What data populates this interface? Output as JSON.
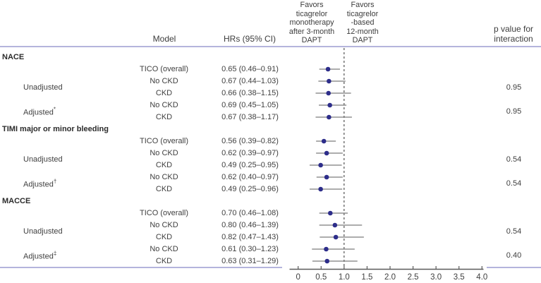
{
  "header": {
    "model": "Model",
    "hr": "HRs (95% CI)",
    "favors_left": [
      "Favors",
      "ticagrelor",
      "monotherapy",
      "after 3-month",
      "DAPT"
    ],
    "favors_right": [
      "Favors",
      "ticagrelor",
      "-based",
      "12-month",
      "DAPT"
    ],
    "p_col": [
      "p value for",
      "interaction"
    ]
  },
  "colors": {
    "marker": "#2d2d8a",
    "ci_line": "#7c7c7c",
    "border": "#b4b4dc",
    "axis": "#5a5a5a",
    "dashed": "#2e2e2e",
    "text": "#3f3f3f"
  },
  "chart_data": {
    "type": "forest",
    "x_axis": {
      "min": 0,
      "max": 4.0,
      "ticks": [
        0,
        0.5,
        1.0,
        1.5,
        2.0,
        2.5,
        3.0,
        3.5,
        4.0
      ],
      "tick_labels": [
        "0",
        "0.5",
        "1.0",
        "1.5",
        "2.0",
        "2.5",
        "3.0",
        "3.5",
        "4.0"
      ],
      "reference_line": 1.0,
      "scale": "linear"
    },
    "sections": [
      {
        "label": "NACE",
        "rows": [
          {
            "model": "TICO (overall)",
            "hr": 0.65,
            "lo": 0.46,
            "hi": 0.91,
            "hr_text": "0.65 (0.46–0.91)"
          },
          {
            "model": "No CKD",
            "hr": 0.67,
            "lo": 0.44,
            "hi": 1.03,
            "hr_text": "0.67 (0.44–1.03)"
          },
          {
            "model": "CKD",
            "hr": 0.66,
            "lo": 0.38,
            "hi": 1.15,
            "hr_text": "0.66 (0.38–1.15)"
          },
          {
            "model": "No CKD",
            "hr": 0.69,
            "lo": 0.45,
            "hi": 1.05,
            "hr_text": "0.69 (0.45–1.05)"
          },
          {
            "model": "CKD",
            "hr": 0.67,
            "lo": 0.38,
            "hi": 1.17,
            "hr_text": "0.67 (0.38–1.17)"
          }
        ],
        "groups": [
          {
            "label": "Unadjusted",
            "sup": "",
            "p": "0.95"
          },
          {
            "label": "Adjusted",
            "sup": "*",
            "p": "0.95"
          }
        ]
      },
      {
        "label": "TIMI major or minor bleeding",
        "rows": [
          {
            "model": "TICO (overall)",
            "hr": 0.56,
            "lo": 0.39,
            "hi": 0.82,
            "hr_text": "0.56 (0.39–0.82)"
          },
          {
            "model": "No CKD",
            "hr": 0.62,
            "lo": 0.39,
            "hi": 0.97,
            "hr_text": "0.62 (0.39–0.97)"
          },
          {
            "model": "CKD",
            "hr": 0.49,
            "lo": 0.25,
            "hi": 0.95,
            "hr_text": "0.49 (0.25–0.95)"
          },
          {
            "model": "No CKD",
            "hr": 0.62,
            "lo": 0.4,
            "hi": 0.97,
            "hr_text": "0.62 (0.40–0.97)"
          },
          {
            "model": "CKD",
            "hr": 0.49,
            "lo": 0.25,
            "hi": 0.96,
            "hr_text": "0.49 (0.25–0.96)"
          }
        ],
        "groups": [
          {
            "label": "Unadjusted",
            "sup": "",
            "p": "0.54"
          },
          {
            "label": "Adjusted",
            "sup": "†",
            "p": "0.54"
          }
        ]
      },
      {
        "label": "MACCE",
        "rows": [
          {
            "model": "TICO (overall)",
            "hr": 0.7,
            "lo": 0.46,
            "hi": 1.08,
            "hr_text": "0.70 (0.46–1.08)"
          },
          {
            "model": "No CKD",
            "hr": 0.8,
            "lo": 0.46,
            "hi": 1.39,
            "hr_text": "0.80 (0.46–1.39)"
          },
          {
            "model": "CKD",
            "hr": 0.82,
            "lo": 0.47,
            "hi": 1.43,
            "hr_text": "0.82 (0.47–1.43)"
          },
          {
            "model": "No CKD",
            "hr": 0.61,
            "lo": 0.3,
            "hi": 1.23,
            "hr_text": "0.61 (0.30–1.23)"
          },
          {
            "model": "CKD",
            "hr": 0.63,
            "lo": 0.31,
            "hi": 1.29,
            "hr_text": "0.63 (0.31–1.29)"
          }
        ],
        "groups": [
          {
            "label": "Unadjusted",
            "sup": "",
            "p": "0.54"
          },
          {
            "label": "Adjusted",
            "sup": "‡",
            "p": "0.40"
          }
        ]
      }
    ]
  }
}
